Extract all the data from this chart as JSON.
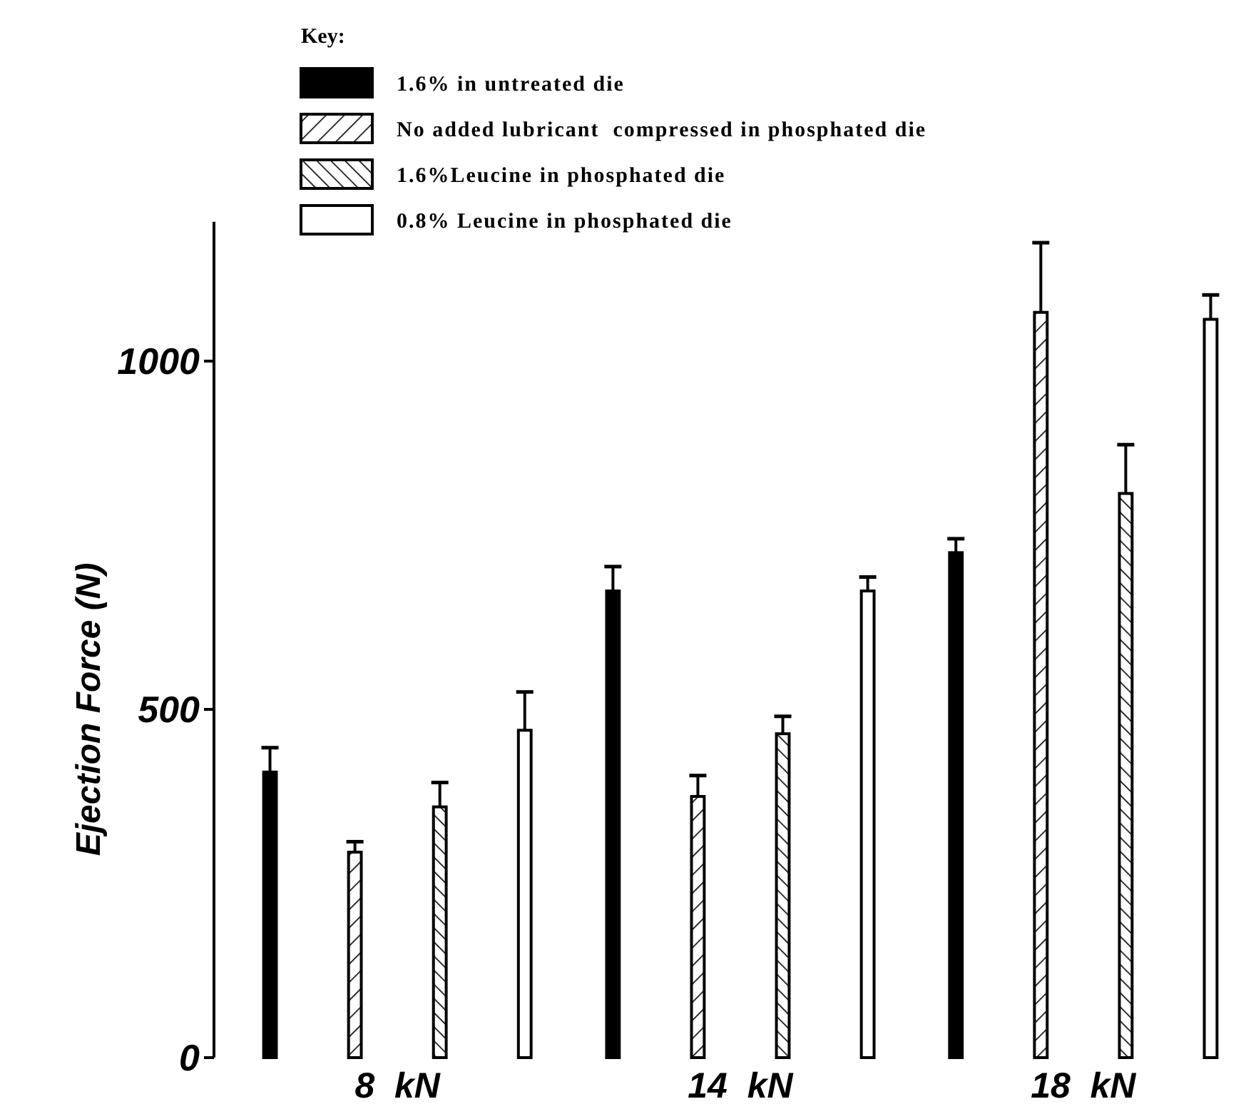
{
  "chart_data": {
    "type": "bar",
    "ylabel": "Ejection Force  (N)",
    "legend_title": "Key:",
    "legend": "top left",
    "categories": [
      "8  kN",
      "14  kN",
      "18  kN"
    ],
    "ylim": [
      0,
      1200
    ],
    "yticks": [
      0,
      500,
      1000
    ],
    "grid": false,
    "series": [
      {
        "name": "1.6% in untreated die",
        "color": "#000000",
        "values": [
          410,
          670,
          725
        ],
        "errors": [
          35,
          35,
          20
        ]
      },
      {
        "name": "No added lubricant  compressed in phosphated die",
        "color": "#000000",
        "values": [
          295,
          375,
          1070
        ],
        "errors": [
          15,
          30,
          100
        ]
      },
      {
        "name": "1.6%Leucine in phosphated die",
        "color": "#000000",
        "values": [
          360,
          465,
          810
        ],
        "errors": [
          35,
          25,
          70
        ]
      },
      {
        "name": "0.8% Leucine in phosphated die",
        "color": "#ffffff",
        "values": [
          470,
          670,
          1060
        ],
        "errors": [
          55,
          20,
          35
        ]
      }
    ]
  }
}
